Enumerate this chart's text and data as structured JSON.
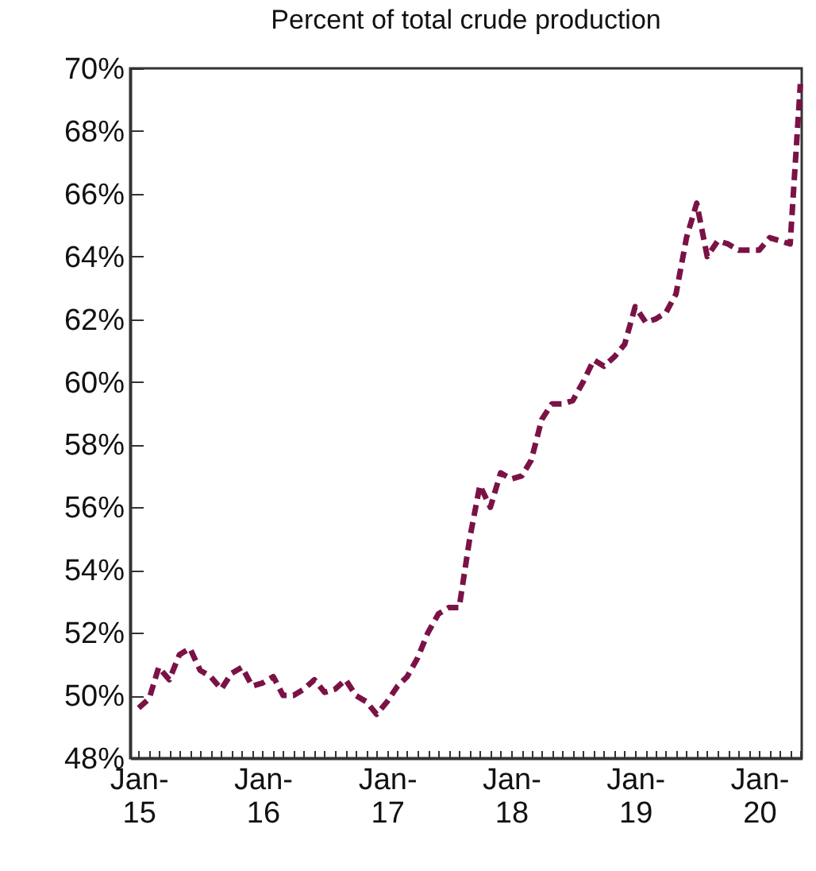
{
  "chart_data": {
    "type": "line",
    "title": "Percent of total crude production",
    "x": [
      "2015-01",
      "2015-02",
      "2015-03",
      "2015-04",
      "2015-05",
      "2015-06",
      "2015-07",
      "2015-08",
      "2015-09",
      "2015-10",
      "2015-11",
      "2015-12",
      "2016-01",
      "2016-02",
      "2016-03",
      "2016-04",
      "2016-05",
      "2016-06",
      "2016-07",
      "2016-08",
      "2016-09",
      "2016-10",
      "2016-11",
      "2016-12",
      "2017-01",
      "2017-02",
      "2017-03",
      "2017-04",
      "2017-05",
      "2017-06",
      "2017-07",
      "2017-08",
      "2017-09",
      "2017-10",
      "2017-11",
      "2017-12",
      "2018-01",
      "2018-02",
      "2018-03",
      "2018-04",
      "2018-05",
      "2018-06",
      "2018-07",
      "2018-08",
      "2018-09",
      "2018-10",
      "2018-11",
      "2018-12",
      "2019-01",
      "2019-02",
      "2019-03",
      "2019-04",
      "2019-05",
      "2019-06",
      "2019-07",
      "2019-08",
      "2019-09",
      "2019-10",
      "2019-11",
      "2019-12",
      "2020-01",
      "2020-02",
      "2020-03",
      "2020-04",
      "2020-05"
    ],
    "series": [
      {
        "color": "#7b1246",
        "values": [
          49.6,
          49.9,
          50.9,
          50.5,
          51.3,
          51.5,
          50.8,
          50.6,
          50.2,
          50.7,
          50.9,
          50.3,
          50.4,
          50.6,
          50.0,
          50.0,
          50.2,
          50.5,
          50.1,
          50.2,
          50.5,
          50.0,
          49.8,
          49.4,
          49.8,
          50.3,
          50.6,
          51.2,
          52.0,
          52.6,
          52.8,
          52.8,
          55.0,
          56.7,
          56.0,
          57.1,
          56.9,
          57.0,
          57.5,
          58.8,
          59.3,
          59.3,
          59.4,
          60.0,
          60.7,
          60.5,
          60.8,
          61.2,
          62.4,
          61.9,
          62.0,
          62.2,
          62.8,
          64.6,
          65.7,
          64.0,
          64.5,
          64.4,
          64.2,
          64.2,
          64.2,
          64.6,
          64.5,
          64.4,
          69.5
        ]
      }
    ],
    "line_style": "dashed",
    "ylim": [
      48,
      70
    ],
    "yticks": [
      {
        "value": 48,
        "label": "48%"
      },
      {
        "value": 50,
        "label": "50%"
      },
      {
        "value": 52,
        "label": "52%"
      },
      {
        "value": 54,
        "label": "54%"
      },
      {
        "value": 56,
        "label": "56%"
      },
      {
        "value": 58,
        "label": "58%"
      },
      {
        "value": 60,
        "label": "60%"
      },
      {
        "value": 62,
        "label": "62%"
      },
      {
        "value": 64,
        "label": "64%"
      },
      {
        "value": 66,
        "label": "66%"
      },
      {
        "value": 68,
        "label": "68%"
      },
      {
        "value": 70,
        "label": "70%"
      }
    ],
    "xlim": [
      "2014-12-07",
      "2020-05-05"
    ],
    "xticks": [
      {
        "value": "2015-01",
        "label": "Jan-\n15"
      },
      {
        "value": "2015-02",
        "label": null
      },
      {
        "value": "2015-03",
        "label": null
      },
      {
        "value": "2015-04",
        "label": null
      },
      {
        "value": "2015-05",
        "label": null
      },
      {
        "value": "2015-06",
        "label": null
      },
      {
        "value": "2015-07",
        "label": null
      },
      {
        "value": "2015-08",
        "label": null
      },
      {
        "value": "2015-09",
        "label": null
      },
      {
        "value": "2015-10",
        "label": null
      },
      {
        "value": "2015-11",
        "label": null
      },
      {
        "value": "2015-12",
        "label": null
      },
      {
        "value": "2016-01",
        "label": "Jan-\n16"
      },
      {
        "value": "2016-02",
        "label": null
      },
      {
        "value": "2016-03",
        "label": null
      },
      {
        "value": "2016-04",
        "label": null
      },
      {
        "value": "2016-05",
        "label": null
      },
      {
        "value": "2016-06",
        "label": null
      },
      {
        "value": "2016-07",
        "label": null
      },
      {
        "value": "2016-08",
        "label": null
      },
      {
        "value": "2016-09",
        "label": null
      },
      {
        "value": "2016-10",
        "label": null
      },
      {
        "value": "2016-11",
        "label": null
      },
      {
        "value": "2016-12",
        "label": null
      },
      {
        "value": "2017-01",
        "label": "Jan-\n17"
      },
      {
        "value": "2017-02",
        "label": null
      },
      {
        "value": "2017-03",
        "label": null
      },
      {
        "value": "2017-04",
        "label": null
      },
      {
        "value": "2017-05",
        "label": null
      },
      {
        "value": "2017-06",
        "label": null
      },
      {
        "value": "2017-07",
        "label": null
      },
      {
        "value": "2017-08",
        "label": null
      },
      {
        "value": "2017-09",
        "label": null
      },
      {
        "value": "2017-10",
        "label": null
      },
      {
        "value": "2017-11",
        "label": null
      },
      {
        "value": "2017-12",
        "label": null
      },
      {
        "value": "2018-01",
        "label": "Jan-\n18"
      },
      {
        "value": "2018-02",
        "label": null
      },
      {
        "value": "2018-03",
        "label": null
      },
      {
        "value": "2018-04",
        "label": null
      },
      {
        "value": "2018-05",
        "label": null
      },
      {
        "value": "2018-06",
        "label": null
      },
      {
        "value": "2018-07",
        "label": null
      },
      {
        "value": "2018-08",
        "label": null
      },
      {
        "value": "2018-09",
        "label": null
      },
      {
        "value": "2018-10",
        "label": null
      },
      {
        "value": "2018-11",
        "label": null
      },
      {
        "value": "2018-12",
        "label": null
      },
      {
        "value": "2019-01",
        "label": "Jan-\n19"
      },
      {
        "value": "2019-02",
        "label": null
      },
      {
        "value": "2019-03",
        "label": null
      },
      {
        "value": "2019-04",
        "label": null
      },
      {
        "value": "2019-05",
        "label": null
      },
      {
        "value": "2019-06",
        "label": null
      },
      {
        "value": "2019-07",
        "label": null
      },
      {
        "value": "2019-08",
        "label": null
      },
      {
        "value": "2019-09",
        "label": null
      },
      {
        "value": "2019-10",
        "label": null
      },
      {
        "value": "2019-11",
        "label": null
      },
      {
        "value": "2019-12",
        "label": null
      },
      {
        "value": "2020-01",
        "label": "Jan-\n20"
      },
      {
        "value": "2020-02",
        "label": null
      },
      {
        "value": "2020-03",
        "label": null
      },
      {
        "value": "2020-04",
        "label": null
      },
      {
        "value": "2020-05",
        "label": null
      }
    ],
    "grid": false
  }
}
